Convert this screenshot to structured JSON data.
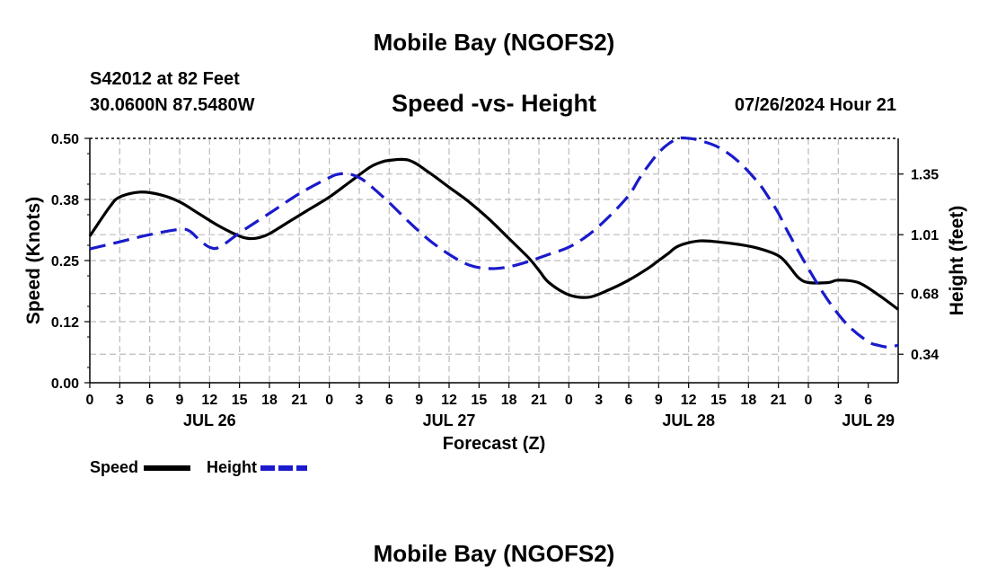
{
  "header": {
    "title": "Mobile Bay (NGOFS2)",
    "station": "S42012 at 82 Feet",
    "coords": "30.0600N  87.5480W",
    "subtitle": "Speed -vs- Height",
    "timestamp": "07/26/2024 Hour 21"
  },
  "footer": {
    "title": "Mobile Bay (NGOFS2)"
  },
  "legend": [
    {
      "label": "Speed",
      "color": "#000000",
      "style": "solid"
    },
    {
      "label": "Height",
      "color": "#1a1acc",
      "style": "dashed"
    }
  ],
  "chart_data": {
    "type": "line",
    "title": "Speed -vs- Height",
    "xlabel": "Forecast (Z)",
    "ylabel": "Speed (Knots)",
    "y2label": "Height (feet)",
    "xlim": [
      0,
      81
    ],
    "ylim": [
      0,
      0.5
    ],
    "y2lim": [
      0.18,
      1.55
    ],
    "x_tick_labels": [
      "0",
      "3",
      "6",
      "9",
      "12",
      "15",
      "18",
      "21",
      "0",
      "3",
      "6",
      "9",
      "12",
      "15",
      "18",
      "21",
      "0",
      "3",
      "6",
      "9",
      "12",
      "15",
      "18",
      "21",
      "0",
      "3",
      "6"
    ],
    "x_day_labels": [
      {
        "x": 12,
        "label": "JUL 26"
      },
      {
        "x": 36,
        "label": "JUL 27"
      },
      {
        "x": 60,
        "label": "JUL 28"
      },
      {
        "x": 78,
        "label": "JUL 29"
      }
    ],
    "y_ticks": [
      "0.00",
      "0.12",
      "0.25",
      "0.38",
      "0.50"
    ],
    "y2_ticks": [
      "0.34",
      "0.68",
      "1.01",
      "1.35"
    ],
    "grid": true,
    "series": [
      {
        "name": "Speed",
        "axis": "left",
        "color": "#000000",
        "dash": "solid",
        "x": [
          0,
          2,
          3,
          5,
          7,
          9,
          11,
          13,
          15,
          16,
          17,
          18,
          20,
          22,
          24,
          26,
          28,
          29,
          30,
          32,
          34,
          36,
          38,
          40,
          42,
          44,
          45,
          46,
          48,
          50,
          52,
          54,
          56,
          57,
          58,
          59,
          61,
          63,
          65,
          67,
          69,
          70,
          71,
          72,
          74,
          75,
          77,
          79,
          81
        ],
        "values": [
          0.3,
          0.36,
          0.38,
          0.39,
          0.385,
          0.37,
          0.345,
          0.32,
          0.3,
          0.295,
          0.297,
          0.305,
          0.33,
          0.355,
          0.38,
          0.41,
          0.44,
          0.45,
          0.455,
          0.455,
          0.43,
          0.4,
          0.37,
          0.335,
          0.295,
          0.255,
          0.23,
          0.205,
          0.18,
          0.175,
          0.19,
          0.21,
          0.235,
          0.25,
          0.265,
          0.28,
          0.29,
          0.288,
          0.283,
          0.275,
          0.26,
          0.24,
          0.215,
          0.205,
          0.205,
          0.21,
          0.205,
          0.18,
          0.15
        ]
      },
      {
        "name": "Height",
        "axis": "right",
        "color": "#1a1acc",
        "dash": "dashed",
        "x": [
          0,
          3,
          6,
          9,
          10,
          11,
          12,
          13,
          15,
          18,
          21,
          24,
          25,
          26,
          27,
          28,
          30,
          32,
          34,
          36,
          38,
          40,
          42,
          44,
          45,
          46,
          48,
          50,
          52,
          54,
          55,
          56,
          57,
          58,
          59,
          60,
          61,
          63,
          65,
          67,
          68,
          69,
          70,
          72,
          74,
          76,
          78,
          79,
          80,
          81
        ],
        "values": [
          0.93,
          0.97,
          1.01,
          1.04,
          1.03,
          0.98,
          0.94,
          0.94,
          1.02,
          1.13,
          1.24,
          1.33,
          1.35,
          1.35,
          1.33,
          1.29,
          1.19,
          1.08,
          0.98,
          0.9,
          0.84,
          0.82,
          0.83,
          0.86,
          0.88,
          0.9,
          0.94,
          1.01,
          1.11,
          1.23,
          1.32,
          1.4,
          1.47,
          1.52,
          1.55,
          1.55,
          1.54,
          1.5,
          1.42,
          1.3,
          1.22,
          1.13,
          1.02,
          0.82,
          0.64,
          0.5,
          0.41,
          0.39,
          0.38,
          0.39
        ]
      }
    ]
  }
}
